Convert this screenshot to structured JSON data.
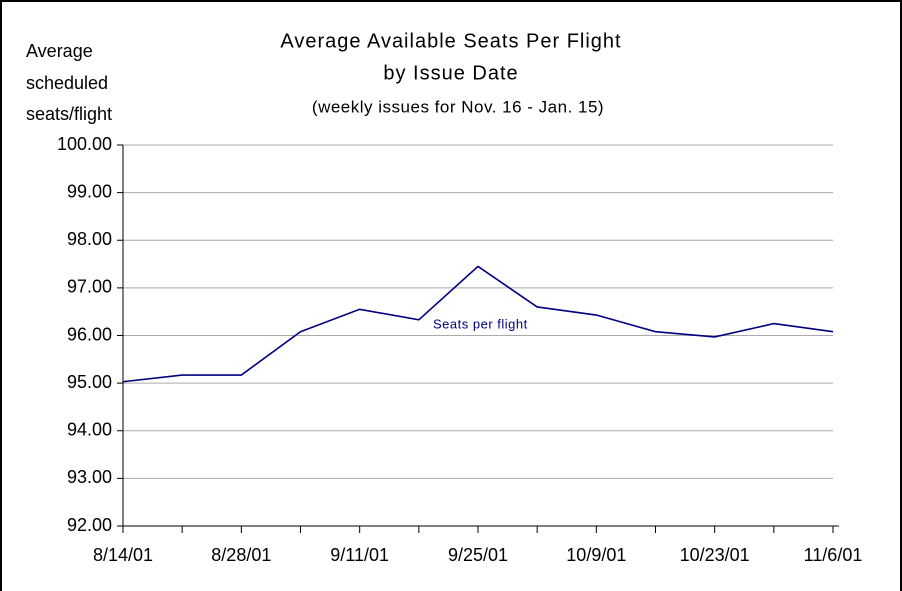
{
  "chart_data": {
    "type": "line",
    "title": "Average Available Seats Per Flight",
    "title_line2": "by Issue Date",
    "subtitle": "(weekly issues for Nov. 16 - Jan. 15)",
    "y_label": [
      "Average",
      "scheduled",
      "seats/flight"
    ],
    "categories": [
      "8/14/01",
      null,
      "8/28/01",
      null,
      "9/11/01",
      null,
      "9/25/01",
      null,
      "10/9/01",
      null,
      "10/23/01",
      null,
      "11/6/01"
    ],
    "series": [
      {
        "name": "Seats per flight",
        "color": "#000080",
        "values": [
          95.03,
          95.17,
          95.17,
          96.08,
          96.55,
          96.33,
          97.45,
          96.6,
          96.43,
          96.08,
          95.97,
          96.25,
          96.08
        ]
      }
    ],
    "ylim": [
      92,
      100
    ],
    "yticks": [
      {
        "value": 92,
        "label": "92.00"
      },
      {
        "value": 93,
        "label": "93.00"
      },
      {
        "value": 94,
        "label": "94.00"
      },
      {
        "value": 95,
        "label": "95.00"
      },
      {
        "value": 96,
        "label": "96.00"
      },
      {
        "value": 97,
        "label": "97.00"
      },
      {
        "value": 98,
        "label": "98.00"
      },
      {
        "value": 99,
        "label": "99.00"
      },
      {
        "value": 100,
        "label": "100.00"
      }
    ],
    "grid": true
  }
}
